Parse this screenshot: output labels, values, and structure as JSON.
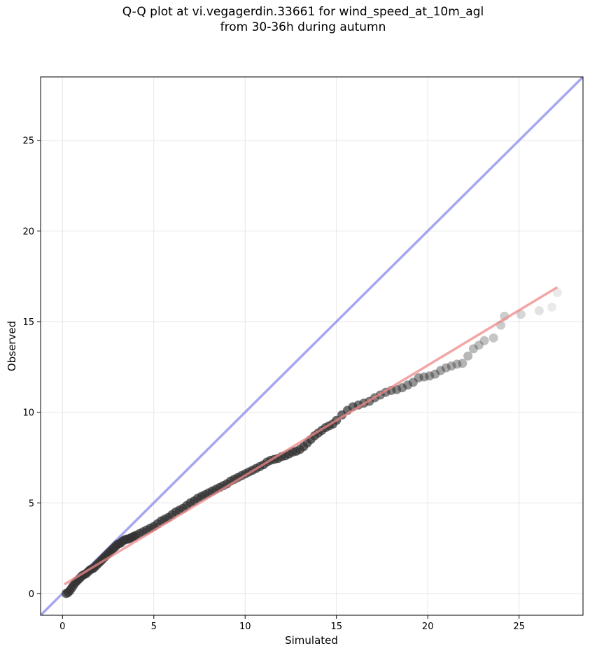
{
  "chart_data": {
    "type": "scatter",
    "title_line1": "Q-Q plot at vi.vegagerdin.33661 for wind_speed_at_10m_agl",
    "title_line2": "from 30-36h during autumn",
    "xlabel": "Simulated",
    "ylabel": "Observed",
    "xlim": [
      -1.2,
      28.5
    ],
    "ylim": [
      -1.2,
      28.5
    ],
    "xticks": [
      0,
      5,
      10,
      15,
      20,
      25
    ],
    "yticks": [
      0,
      5,
      10,
      15,
      20,
      25
    ],
    "grid": true,
    "identity_line": {
      "color": "#8888ee"
    },
    "fit_line": {
      "x": [
        0.1,
        27.1
      ],
      "y": [
        0.5,
        16.9
      ],
      "color": "#ee8888"
    },
    "point_color": "#333333",
    "series": [
      {
        "x": [
          0.2,
          0.3,
          0.4,
          0.5,
          0.6,
          0.7,
          0.8,
          0.9,
          1.0,
          1.1,
          1.2,
          1.3,
          1.4,
          1.5,
          1.6,
          1.7,
          1.8,
          1.9,
          2.0,
          2.1,
          2.2,
          2.3,
          2.4,
          2.5,
          2.6,
          2.7,
          2.8,
          2.9,
          3.0,
          3.1,
          3.2,
          3.3,
          3.4,
          3.5,
          3.6,
          3.7,
          3.8,
          3.9,
          4.0,
          4.2,
          4.4,
          4.6,
          4.8,
          5.0,
          5.2,
          5.4,
          5.6,
          5.8,
          6.0,
          6.2,
          6.4,
          6.6,
          6.8,
          7.0,
          7.2,
          7.4,
          7.6,
          7.8,
          8.0,
          8.2,
          8.4,
          8.6,
          8.8,
          9.0,
          9.2,
          9.4,
          9.6,
          9.8,
          10.0,
          10.2,
          10.4,
          10.6,
          10.8,
          11.0,
          11.2,
          11.4,
          11.6,
          11.8,
          12.0,
          12.2,
          12.4,
          12.6,
          12.8,
          13.0,
          13.2,
          13.4,
          13.6,
          13.8,
          14.0,
          14.2,
          14.4,
          14.6,
          14.8,
          15.0,
          15.3,
          15.6,
          15.9,
          16.2,
          16.5,
          16.8,
          17.1,
          17.4,
          17.7,
          18.0,
          18.3,
          18.6,
          18.9,
          19.2,
          19.5,
          19.8,
          20.1,
          20.4,
          20.7,
          21.0,
          21.3,
          21.6,
          21.9,
          22.2,
          22.5,
          22.8,
          23.1,
          23.6,
          24.0,
          24.2,
          25.1,
          26.1,
          26.8,
          27.1
        ],
        "y": [
          0.0,
          0.05,
          0.15,
          0.3,
          0.45,
          0.6,
          0.7,
          0.8,
          0.9,
          1.0,
          1.05,
          1.1,
          1.2,
          1.3,
          1.35,
          1.4,
          1.5,
          1.6,
          1.7,
          1.8,
          1.9,
          2.0,
          2.1,
          2.2,
          2.3,
          2.4,
          2.5,
          2.6,
          2.7,
          2.75,
          2.8,
          2.9,
          2.95,
          3.0,
          3.0,
          3.05,
          3.1,
          3.15,
          3.2,
          3.3,
          3.4,
          3.5,
          3.6,
          3.7,
          3.85,
          4.0,
          4.1,
          4.2,
          4.35,
          4.5,
          4.6,
          4.7,
          4.85,
          5.0,
          5.1,
          5.25,
          5.35,
          5.45,
          5.55,
          5.65,
          5.75,
          5.85,
          5.95,
          6.05,
          6.2,
          6.3,
          6.4,
          6.5,
          6.6,
          6.7,
          6.8,
          6.9,
          7.0,
          7.1,
          7.25,
          7.35,
          7.4,
          7.45,
          7.55,
          7.6,
          7.7,
          7.8,
          7.85,
          7.95,
          8.1,
          8.3,
          8.5,
          8.7,
          8.85,
          9.0,
          9.15,
          9.25,
          9.35,
          9.55,
          9.85,
          10.1,
          10.3,
          10.4,
          10.5,
          10.6,
          10.8,
          10.95,
          11.1,
          11.2,
          11.25,
          11.35,
          11.5,
          11.65,
          11.9,
          11.95,
          12.0,
          12.1,
          12.3,
          12.45,
          12.55,
          12.65,
          12.7,
          13.1,
          13.5,
          13.7,
          13.95,
          14.1,
          14.8,
          15.3,
          15.4,
          15.6,
          15.8,
          16.6
        ]
      }
    ]
  }
}
